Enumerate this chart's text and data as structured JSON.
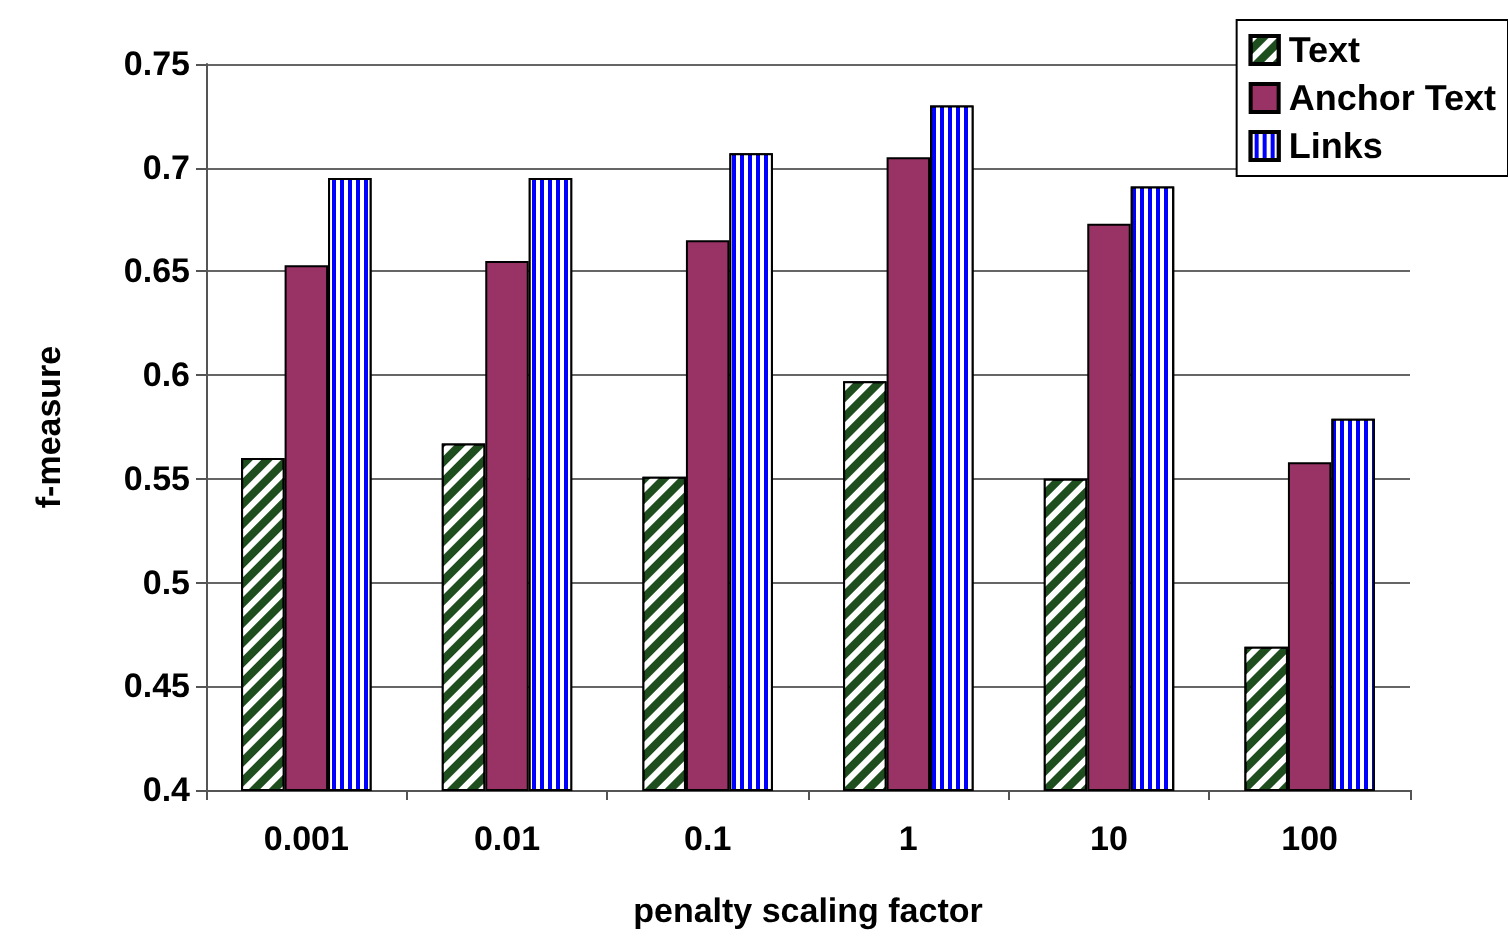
{
  "chart_data": {
    "type": "bar",
    "xlabel": "penalty scaling factor",
    "ylabel": "f-measure",
    "categories": [
      "0.001",
      "0.01",
      "0.1",
      "1",
      "10",
      "100"
    ],
    "series": [
      {
        "name": "Text",
        "color": "#1e4d1e",
        "values": [
          0.56,
          0.567,
          0.551,
          0.597,
          0.55,
          0.469
        ]
      },
      {
        "name": "Anchor Text",
        "color": "#993366",
        "values": [
          0.653,
          0.655,
          0.665,
          0.705,
          0.673,
          0.558
        ]
      },
      {
        "name": "Links",
        "color": "#0000ff",
        "values": [
          0.695,
          0.695,
          0.707,
          0.73,
          0.691,
          0.579
        ]
      }
    ],
    "ylim": [
      0.4,
      0.75
    ],
    "yticks": [
      0.4,
      0.45,
      0.5,
      0.55,
      0.6,
      0.65,
      0.7,
      0.75
    ],
    "grid": "y",
    "legend": "top right"
  }
}
